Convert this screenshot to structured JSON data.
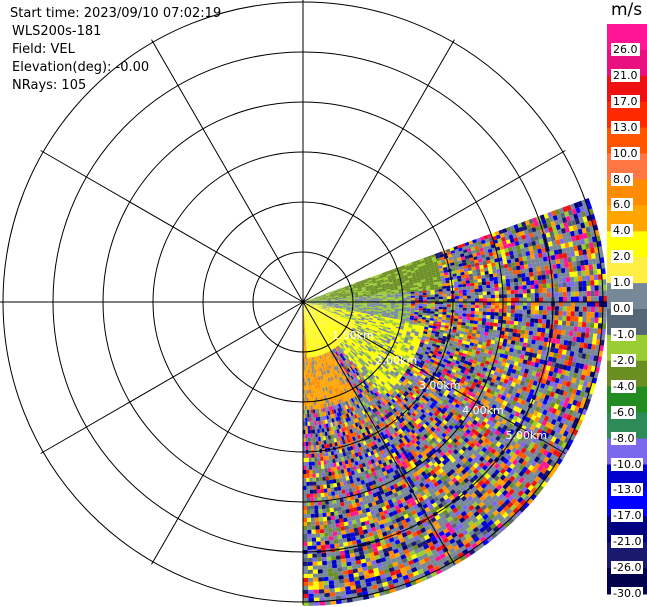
{
  "header": {
    "start_time": "Start time: 2023/09/10 07:02:19",
    "instrument": "WLS200s-181",
    "field": "Field: VEL",
    "elevation": "Elevation(deg): -0.00",
    "nrays": "NRays: 105"
  },
  "chart_data": {
    "type": "heatmap",
    "projection": "polar",
    "field": "VEL",
    "range_ring_labels": [
      "1.00km",
      "2.00km",
      "3.00km",
      "4.00km",
      "5.00km"
    ],
    "azimuth_sector_deg": [
      70,
      180
    ],
    "n_rays": 105,
    "colorbar": {
      "unit": "m/s",
      "tick_labels": [
        "26.0",
        "21.0",
        "17.0",
        "13.0",
        "10.0",
        "8.0",
        "6.0",
        "4.0",
        "2.0",
        "1.0",
        "0.0",
        "-1.0",
        "-2.0",
        "-4.0",
        "-6.0",
        "-8.0",
        "-10.0",
        "-13.0",
        "-17.0",
        "-21.0",
        "-26.0",
        "-30.0"
      ],
      "colors": [
        "#ff1493",
        "#e8117f",
        "#ee1111",
        "#ff2a00",
        "#ff5500",
        "#ff7744",
        "#ff8c00",
        "#ffa500",
        "#ffff00",
        "#ffee44",
        "#778899",
        "#556677",
        "#9acd32",
        "#6b8e23",
        "#228b22",
        "#2e8b57",
        "#7b68ee",
        "#0000cd",
        "#0000ff",
        "#000080",
        "#191970",
        "#00004d"
      ]
    },
    "grid": true
  }
}
